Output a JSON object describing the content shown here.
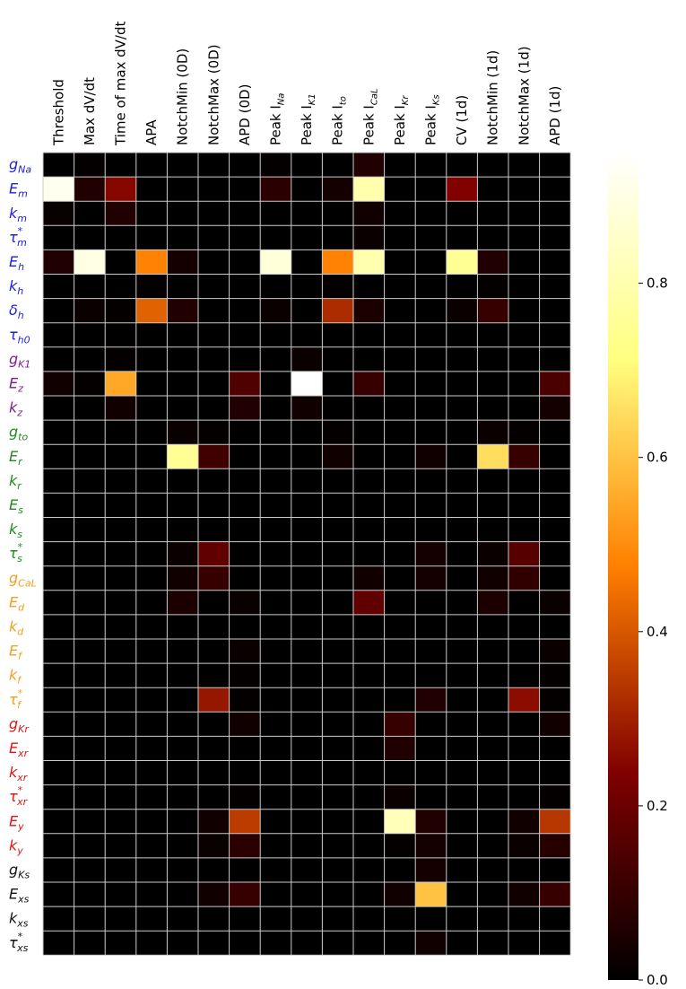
{
  "chart_data": {
    "type": "heatmap",
    "columns": [
      {
        "text": "Threshold"
      },
      {
        "text": "Max dV/dt"
      },
      {
        "text": "Time of max dV/dt"
      },
      {
        "text": "APA"
      },
      {
        "text": "NotchMin (0D)"
      },
      {
        "text": "NotchMax (0D)"
      },
      {
        "text": "APD (0D)"
      },
      {
        "text": "Peak I",
        "sub": "Na"
      },
      {
        "text": "Peak I",
        "sub": "K1"
      },
      {
        "text": "Peak I",
        "sub": "to"
      },
      {
        "text": "Peak I",
        "sub": "CaL"
      },
      {
        "text": "Peak I",
        "sub": "Kr"
      },
      {
        "text": "Peak I",
        "sub": "Ks"
      },
      {
        "text": "CV (1d)"
      },
      {
        "text": "NotchMin (1d)"
      },
      {
        "text": "NotchMax (1d)"
      },
      {
        "text": "APD (1d)"
      }
    ],
    "rows": [
      {
        "base": "g",
        "sub": "Na",
        "color": "#1f1fd6"
      },
      {
        "base": "E",
        "sub": "m",
        "color": "#1f1fd6"
      },
      {
        "base": "k",
        "sub": "m",
        "color": "#1f1fd6"
      },
      {
        "base": "τ",
        "sub": "m",
        "sup": "*",
        "color": "#1f1fd6"
      },
      {
        "base": "E",
        "sub": "h",
        "color": "#1f1fd6"
      },
      {
        "base": "k",
        "sub": "h",
        "color": "#1f1fd6"
      },
      {
        "base": "δ",
        "sub": "h",
        "color": "#1f1fd6"
      },
      {
        "base": "τ",
        "sub": "h0",
        "color": "#1f1fd6"
      },
      {
        "base": "g",
        "sub": "K1",
        "color": "#7a1f8c"
      },
      {
        "base": "E",
        "sub": "z",
        "color": "#7a1f8c"
      },
      {
        "base": "k",
        "sub": "z",
        "color": "#7a1f8c"
      },
      {
        "base": "g",
        "sub": "to",
        "color": "#1e8c1e"
      },
      {
        "base": "E",
        "sub": "r",
        "color": "#1e8c1e"
      },
      {
        "base": "k",
        "sub": "r",
        "color": "#1e8c1e"
      },
      {
        "base": "E",
        "sub": "s",
        "color": "#1e8c1e"
      },
      {
        "base": "k",
        "sub": "s",
        "color": "#1e8c1e"
      },
      {
        "base": "τ",
        "sub": "s",
        "sup": "*",
        "color": "#1e8c1e"
      },
      {
        "base": "g",
        "sub": "CaL",
        "color": "#f0a020"
      },
      {
        "base": "E",
        "sub": "d",
        "color": "#f0a020"
      },
      {
        "base": "k",
        "sub": "d",
        "color": "#f0a020"
      },
      {
        "base": "E",
        "sub": "f",
        "color": "#f0a020"
      },
      {
        "base": "k",
        "sub": "f",
        "color": "#f0a020"
      },
      {
        "base": "τ",
        "sub": "f",
        "sup": "*",
        "color": "#f0a020"
      },
      {
        "base": "g",
        "sub": "Kr",
        "color": "#e01515"
      },
      {
        "base": "E",
        "sub": "xr",
        "color": "#e01515"
      },
      {
        "base": "k",
        "sub": "xr",
        "color": "#e01515"
      },
      {
        "base": "τ",
        "sub": "xr",
        "sup": "*",
        "color": "#e01515"
      },
      {
        "base": "E",
        "sub": "y",
        "color": "#e01515"
      },
      {
        "base": "k",
        "sub": "y",
        "color": "#e01515"
      },
      {
        "base": "g",
        "sub": "Ks",
        "color": "#111111"
      },
      {
        "base": "E",
        "sub": "xs",
        "color": "#111111"
      },
      {
        "base": "k",
        "sub": "xs",
        "color": "#111111"
      },
      {
        "base": "τ",
        "sub": "xs",
        "sup": "*",
        "color": "#111111"
      }
    ],
    "values": [
      [
        0.0,
        0.01,
        0.0,
        0.0,
        0.0,
        0.0,
        0.0,
        0.01,
        0.0,
        0.0,
        0.06,
        0.0,
        0.0,
        0.0,
        0.0,
        0.0,
        0.0
      ],
      [
        0.92,
        0.06,
        0.25,
        0.0,
        0.0,
        0.0,
        0.0,
        0.08,
        0.0,
        0.04,
        0.8,
        0.0,
        0.0,
        0.24,
        0.0,
        0.0,
        0.0
      ],
      [
        0.02,
        0.0,
        0.06,
        0.0,
        0.0,
        0.0,
        0.0,
        0.0,
        0.0,
        0.0,
        0.03,
        0.0,
        0.0,
        0.0,
        0.0,
        0.0,
        0.0
      ],
      [
        0.0,
        0.0,
        0.0,
        0.0,
        0.0,
        0.0,
        0.0,
        0.0,
        0.0,
        0.0,
        0.02,
        0.0,
        0.0,
        0.0,
        0.0,
        0.0,
        0.0
      ],
      [
        0.06,
        0.9,
        0.0,
        0.48,
        0.04,
        0.0,
        0.0,
        0.88,
        0.0,
        0.48,
        0.8,
        0.0,
        0.0,
        0.75,
        0.06,
        0.0,
        0.0
      ],
      [
        0.0,
        0.0,
        0.0,
        0.01,
        0.0,
        0.0,
        0.0,
        0.0,
        0.0,
        0.01,
        0.0,
        0.0,
        0.0,
        0.0,
        0.01,
        0.0,
        0.0
      ],
      [
        0.0,
        0.02,
        0.01,
        0.42,
        0.06,
        0.0,
        0.0,
        0.02,
        0.0,
        0.32,
        0.05,
        0.0,
        0.0,
        0.02,
        0.1,
        0.0,
        0.0
      ],
      [
        0.0,
        0.0,
        0.0,
        0.0,
        0.0,
        0.0,
        0.0,
        0.0,
        0.0,
        0.0,
        0.0,
        0.0,
        0.0,
        0.0,
        0.0,
        0.0,
        0.0
      ],
      [
        0.0,
        0.0,
        0.01,
        0.0,
        0.0,
        0.0,
        0.0,
        0.0,
        0.02,
        0.0,
        0.0,
        0.0,
        0.0,
        0.0,
        0.0,
        0.0,
        0.0
      ],
      [
        0.03,
        0.01,
        0.55,
        0.0,
        0.0,
        0.0,
        0.15,
        0.0,
        0.95,
        0.0,
        0.1,
        0.0,
        0.0,
        0.0,
        0.0,
        0.0,
        0.14
      ],
      [
        0.0,
        0.0,
        0.03,
        0.0,
        0.0,
        0.0,
        0.06,
        0.0,
        0.03,
        0.0,
        0.0,
        0.0,
        0.0,
        0.0,
        0.0,
        0.0,
        0.04
      ],
      [
        0.0,
        0.0,
        0.0,
        0.0,
        0.02,
        0.01,
        0.0,
        0.0,
        0.0,
        0.01,
        0.0,
        0.0,
        0.0,
        0.0,
        0.02,
        0.01,
        0.0
      ],
      [
        0.0,
        0.0,
        0.0,
        0.0,
        0.75,
        0.12,
        0.0,
        0.0,
        0.0,
        0.03,
        0.0,
        0.0,
        0.03,
        0.0,
        0.65,
        0.1,
        0.0
      ],
      [
        0.0,
        0.0,
        0.0,
        0.0,
        0.0,
        0.0,
        0.0,
        0.0,
        0.0,
        0.0,
        0.0,
        0.0,
        0.0,
        0.0,
        0.0,
        0.0,
        0.0
      ],
      [
        0.0,
        0.0,
        0.0,
        0.0,
        0.0,
        0.0,
        0.0,
        0.0,
        0.0,
        0.0,
        0.0,
        0.0,
        0.0,
        0.0,
        0.0,
        0.0,
        0.0
      ],
      [
        0.0,
        0.0,
        0.0,
        0.0,
        0.0,
        0.0,
        0.0,
        0.0,
        0.0,
        0.0,
        0.0,
        0.0,
        0.0,
        0.0,
        0.0,
        0.0,
        0.0
      ],
      [
        0.0,
        0.0,
        0.0,
        0.0,
        0.02,
        0.18,
        0.0,
        0.0,
        0.0,
        0.0,
        0.0,
        0.0,
        0.04,
        0.0,
        0.02,
        0.16,
        0.0
      ],
      [
        0.0,
        0.0,
        0.0,
        0.0,
        0.03,
        0.1,
        0.0,
        0.0,
        0.0,
        0.0,
        0.03,
        0.0,
        0.04,
        0.0,
        0.03,
        0.09,
        0.0
      ],
      [
        0.0,
        0.0,
        0.0,
        0.0,
        0.05,
        0.0,
        0.02,
        0.0,
        0.0,
        0.0,
        0.18,
        0.0,
        0.0,
        0.0,
        0.05,
        0.0,
        0.02
      ],
      [
        0.0,
        0.0,
        0.0,
        0.0,
        0.0,
        0.0,
        0.0,
        0.0,
        0.0,
        0.0,
        0.0,
        0.0,
        0.0,
        0.0,
        0.0,
        0.0,
        0.0
      ],
      [
        0.0,
        0.0,
        0.0,
        0.0,
        0.0,
        0.0,
        0.02,
        0.0,
        0.0,
        0.0,
        0.0,
        0.0,
        0.0,
        0.0,
        0.0,
        0.0,
        0.02
      ],
      [
        0.0,
        0.0,
        0.0,
        0.0,
        0.0,
        0.0,
        0.01,
        0.0,
        0.0,
        0.0,
        0.0,
        0.0,
        0.0,
        0.0,
        0.0,
        0.0,
        0.01
      ],
      [
        0.0,
        0.0,
        0.0,
        0.0,
        0.0,
        0.28,
        0.01,
        0.0,
        0.0,
        0.0,
        0.0,
        0.0,
        0.06,
        0.0,
        0.0,
        0.26,
        0.01
      ],
      [
        0.0,
        0.0,
        0.0,
        0.0,
        0.0,
        0.0,
        0.03,
        0.0,
        0.0,
        0.0,
        0.0,
        0.1,
        0.0,
        0.0,
        0.0,
        0.0,
        0.03
      ],
      [
        0.0,
        0.0,
        0.0,
        0.0,
        0.0,
        0.0,
        0.0,
        0.0,
        0.0,
        0.0,
        0.0,
        0.06,
        0.0,
        0.0,
        0.0,
        0.0,
        0.0
      ],
      [
        0.0,
        0.0,
        0.0,
        0.0,
        0.0,
        0.0,
        0.0,
        0.0,
        0.0,
        0.0,
        0.0,
        0.0,
        0.0,
        0.0,
        0.0,
        0.0,
        0.0
      ],
      [
        0.0,
        0.0,
        0.0,
        0.0,
        0.0,
        0.0,
        0.01,
        0.0,
        0.0,
        0.0,
        0.0,
        0.02,
        0.0,
        0.0,
        0.0,
        0.0,
        0.01
      ],
      [
        0.0,
        0.0,
        0.0,
        0.0,
        0.0,
        0.03,
        0.35,
        0.0,
        0.0,
        0.0,
        0.0,
        0.82,
        0.06,
        0.0,
        0.0,
        0.03,
        0.34
      ],
      [
        0.0,
        0.0,
        0.0,
        0.0,
        0.0,
        0.02,
        0.08,
        0.0,
        0.0,
        0.0,
        0.0,
        0.01,
        0.04,
        0.0,
        0.0,
        0.02,
        0.07
      ],
      [
        0.0,
        0.0,
        0.0,
        0.0,
        0.0,
        0.0,
        0.0,
        0.0,
        0.0,
        0.0,
        0.0,
        0.0,
        0.04,
        0.0,
        0.0,
        0.0,
        0.0
      ],
      [
        0.0,
        0.0,
        0.0,
        0.0,
        0.0,
        0.03,
        0.1,
        0.0,
        0.0,
        0.0,
        0.0,
        0.03,
        0.6,
        0.0,
        0.0,
        0.03,
        0.1
      ],
      [
        0.0,
        0.0,
        0.0,
        0.0,
        0.0,
        0.0,
        0.0,
        0.0,
        0.0,
        0.0,
        0.0,
        0.0,
        0.0,
        0.0,
        0.0,
        0.0,
        0.0
      ],
      [
        0.0,
        0.0,
        0.0,
        0.0,
        0.0,
        0.0,
        0.0,
        0.0,
        0.0,
        0.0,
        0.0,
        0.0,
        0.03,
        0.0,
        0.0,
        0.0,
        0.0
      ]
    ],
    "colormap": "afmhot",
    "colorbar": {
      "vmin": 0.0,
      "vmax": 0.95,
      "ticks": [
        0.0,
        0.2,
        0.4,
        0.6,
        0.8
      ],
      "tick_labels": [
        "0.0",
        "0.2",
        "0.4",
        "0.6",
        "0.8"
      ]
    },
    "grid_color": "#cccccc"
  }
}
